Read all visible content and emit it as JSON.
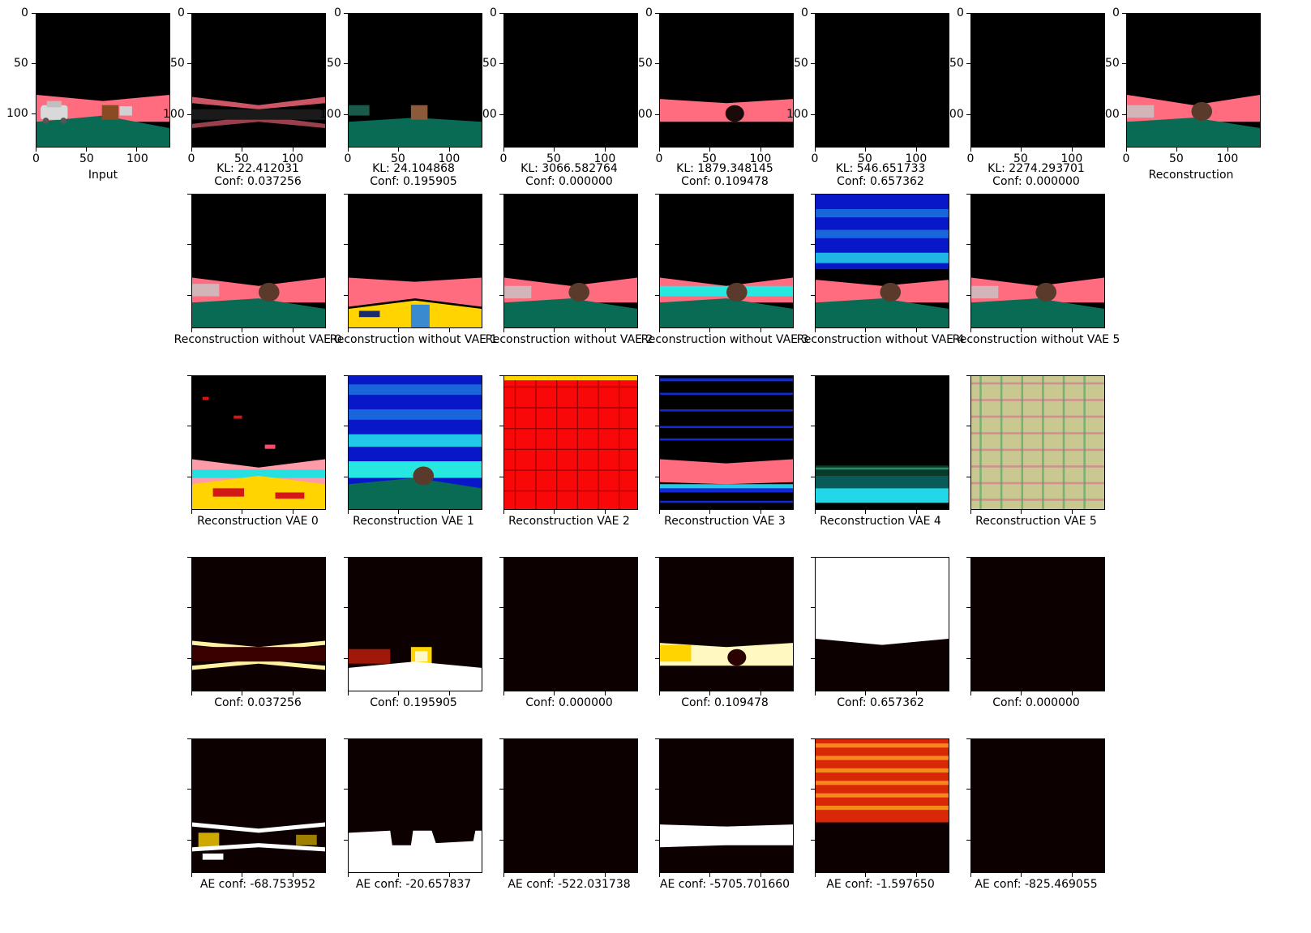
{
  "figure": {
    "axis_ticks": {
      "y": [
        "0",
        "50",
        "100"
      ],
      "x": [
        "0",
        "50",
        "100"
      ]
    },
    "row1": [
      {
        "caption": "Input"
      },
      {
        "caption": "KL: 22.412031\nConf: 0.037256"
      },
      {
        "caption": "KL: 24.104868\nConf: 0.195905"
      },
      {
        "caption": "KL: 3066.582764\nConf: 0.000000"
      },
      {
        "caption": "KL: 1879.348145\nConf: 0.109478"
      },
      {
        "caption": "KL: 546.651733\nConf: 0.657362"
      },
      {
        "caption": "KL: 2274.293701\nConf: 0.000000"
      },
      {
        "caption": "Reconstruction"
      }
    ],
    "row2": [
      {
        "caption": "Reconstruction without VAE 0"
      },
      {
        "caption": "Reconstruction without VAE 1"
      },
      {
        "caption": "Reconstruction without VAE 2"
      },
      {
        "caption": "Reconstruction without VAE 3"
      },
      {
        "caption": "Reconstruction without VAE 4"
      },
      {
        "caption": "Reconstruction without VAE 5"
      }
    ],
    "row3": [
      {
        "caption": "Reconstruction VAE 0"
      },
      {
        "caption": "Reconstruction VAE 1"
      },
      {
        "caption": "Reconstruction VAE 2"
      },
      {
        "caption": "Reconstruction VAE 3"
      },
      {
        "caption": "Reconstruction VAE 4"
      },
      {
        "caption": "Reconstruction VAE 5"
      }
    ],
    "row4": [
      {
        "caption": "Conf: 0.037256"
      },
      {
        "caption": "Conf: 0.195905"
      },
      {
        "caption": "Conf: 0.000000"
      },
      {
        "caption": "Conf: 0.109478"
      },
      {
        "caption": "Conf: 0.657362"
      },
      {
        "caption": "Conf: 0.000000"
      }
    ],
    "row5": [
      {
        "caption": "AE conf: -68.753952"
      },
      {
        "caption": "AE conf: -20.657837"
      },
      {
        "caption": "AE conf: -522.031738"
      },
      {
        "caption": "AE conf: -5705.701660"
      },
      {
        "caption": "AE conf: -1.597650"
      },
      {
        "caption": "AE conf: -825.469055"
      }
    ]
  },
  "colors": {
    "road_pink": "#ff6b7f",
    "ground_green": "#0a6b55",
    "heat_dark": "#0d0000",
    "heat_hot": "#ffffff"
  }
}
